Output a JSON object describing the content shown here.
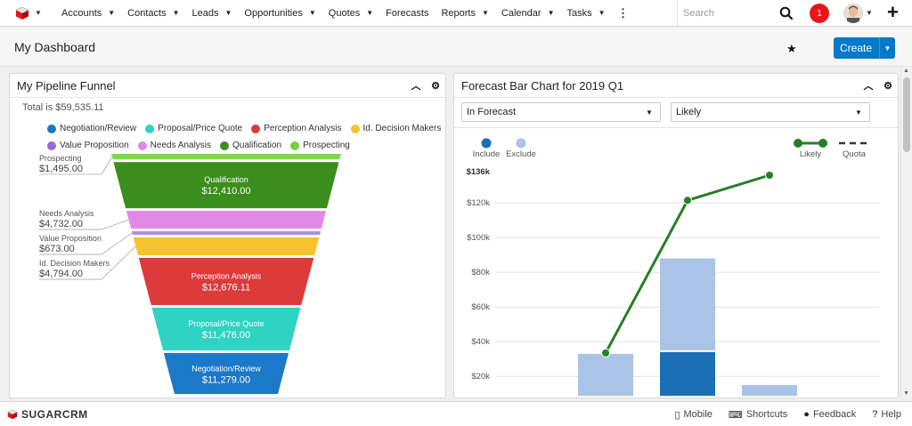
{
  "nav": {
    "items": [
      {
        "label": "Accounts"
      },
      {
        "label": "Contacts"
      },
      {
        "label": "Leads"
      },
      {
        "label": "Opportunities"
      },
      {
        "label": "Quotes"
      },
      {
        "label": "Forecasts"
      },
      {
        "label": "Reports"
      },
      {
        "label": "Calendar"
      },
      {
        "label": "Tasks"
      }
    ],
    "more": "⋮",
    "search_placeholder": "Search",
    "notification_count": "1",
    "plus": "+"
  },
  "dashboard": {
    "title": "My Dashboard",
    "create_label": "Create"
  },
  "funnel": {
    "title": "My Pipeline Funnel",
    "total": "Total is $59,535.11",
    "legend": [
      {
        "label": "Negotiation/Review",
        "color": "#1c78c9"
      },
      {
        "label": "Proposal/Price Quote",
        "color": "#2fd3c2"
      },
      {
        "label": "Perception Analysis",
        "color": "#dc3a3b"
      },
      {
        "label": "Id. Decision Makers",
        "color": "#f4c32d"
      },
      {
        "label": "Value Proposition",
        "color": "#9a68d6"
      },
      {
        "label": "Needs Analysis",
        "color": "#e08ae6"
      },
      {
        "label": "Qualification",
        "color": "#3a8e1d"
      },
      {
        "label": "Prospecting",
        "color": "#6ed33c"
      }
    ],
    "segments": [
      {
        "name": "Prospecting",
        "value": "$1,495.00",
        "amount": 1495.0,
        "color": "#7fd84c",
        "labelled": "side"
      },
      {
        "name": "Qualification",
        "value": "$12,410.00",
        "amount": 12410.0,
        "color": "#3a8e1d",
        "labelled": "inside"
      },
      {
        "name": "Needs Analysis",
        "value": "$4,732.00",
        "amount": 4732.0,
        "color": "#e08ae6",
        "labelled": "side"
      },
      {
        "name": "Value Proposition",
        "value": "$673.00",
        "amount": 673.0,
        "color": "#b58be6",
        "labelled": "side"
      },
      {
        "name": "Id. Decision Makers",
        "value": "$4,794.00",
        "amount": 4794.0,
        "color": "#f4c32d",
        "labelled": "side"
      },
      {
        "name": "Perception Analysis",
        "value": "$12,676.11",
        "amount": 12676.11,
        "color": "#dc3a3b",
        "labelled": "inside"
      },
      {
        "name": "Proposal/Price Quote",
        "value": "$11,476.00",
        "amount": 11476.0,
        "color": "#2fd3c2",
        "labelled": "inside"
      },
      {
        "name": "Negotiation/Review",
        "value": "$11,279.00",
        "amount": 11279.0,
        "color": "#1c78c9",
        "labelled": "inside"
      }
    ]
  },
  "forecast": {
    "title": "Forecast Bar Chart for 2019 Q1",
    "filter1": "In Forecast",
    "filter2": "Likely"
  },
  "chart_data": {
    "type": "bar",
    "legend_left": [
      {
        "name": "Include",
        "color": "#1c6fb5"
      },
      {
        "name": "Exclude",
        "color": "#a9c4e6"
      }
    ],
    "legend_right": [
      {
        "name": "Likely",
        "color": "#268026"
      },
      {
        "name": "Quota",
        "color": "#333333"
      }
    ],
    "max_label": "$136k",
    "yticks": [
      "$120k",
      "$100k",
      "$80k",
      "$60k",
      "$40k",
      "$20k"
    ],
    "ytick_values": [
      120000,
      100000,
      80000,
      60000,
      40000,
      20000
    ],
    "ylim": [
      0,
      136000
    ],
    "bars": [
      {
        "include": 0,
        "exclude": 33000
      },
      {
        "include": 34000,
        "exclude": 54000
      },
      {
        "include": 0,
        "exclude": 15000
      }
    ],
    "likely_line": [
      33500,
      121500,
      136000
    ]
  },
  "footer": {
    "brand": "SUGARCRM",
    "links": [
      {
        "label": "Mobile",
        "icon": "mobile-icon"
      },
      {
        "label": "Shortcuts",
        "icon": "keyboard-icon"
      },
      {
        "label": "Feedback",
        "icon": "chat-icon"
      },
      {
        "label": "Help",
        "icon": "help-icon"
      }
    ]
  }
}
